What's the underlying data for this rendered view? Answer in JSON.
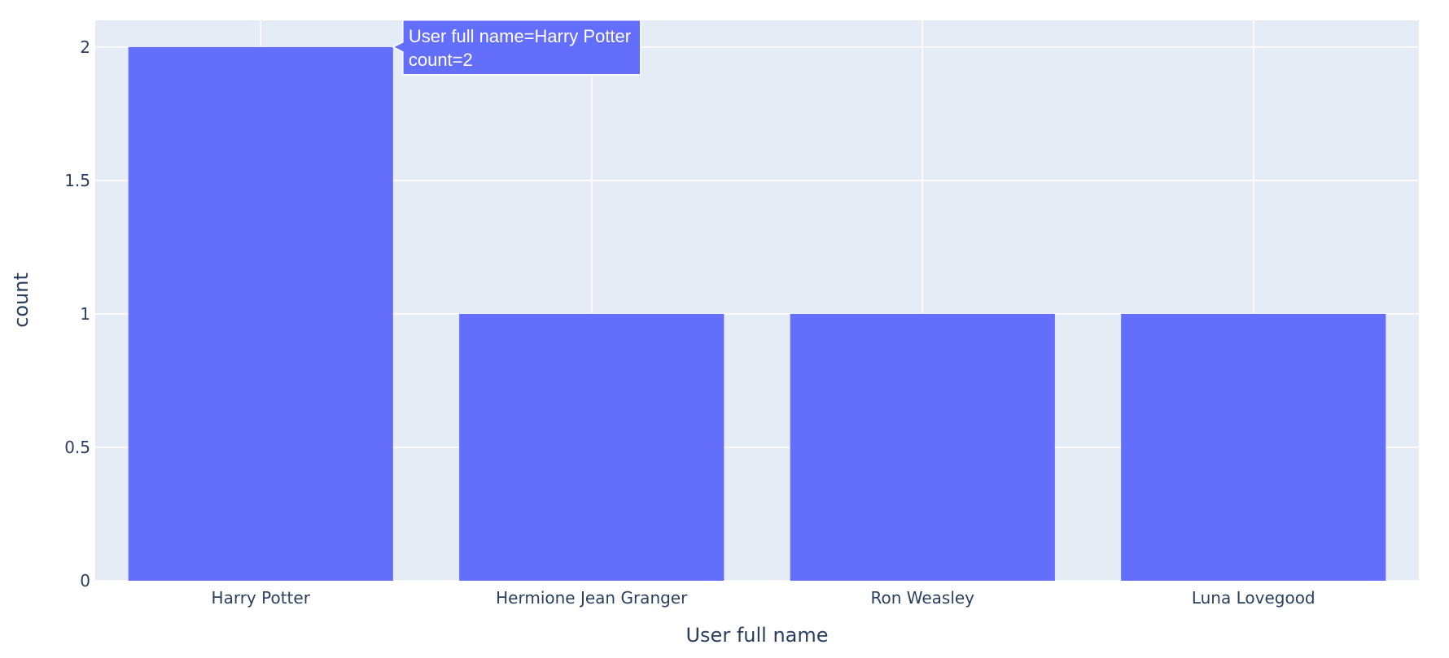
{
  "chart_data": {
    "type": "bar",
    "categories": [
      "Harry Potter",
      "Hermione Jean Granger",
      "Ron Weasley",
      "Luna Lovegood"
    ],
    "values": [
      2,
      1,
      1,
      1
    ],
    "xlabel": "User full name",
    "ylabel": "count",
    "ylim": [
      0,
      2.1
    ],
    "yticks": [
      0,
      0.5,
      1,
      1.5,
      2
    ],
    "ytick_labels": [
      "0",
      "0.5",
      "1",
      "1.5",
      "2"
    ],
    "grid": true,
    "colors": {
      "bar": "#636efa",
      "plot_bg": "#e5ecf6",
      "grid": "#ffffff",
      "text": "#2a3f5f"
    },
    "hover": {
      "category_index": 0,
      "lines": [
        "User full name=Harry Potter",
        "count=2"
      ]
    }
  }
}
